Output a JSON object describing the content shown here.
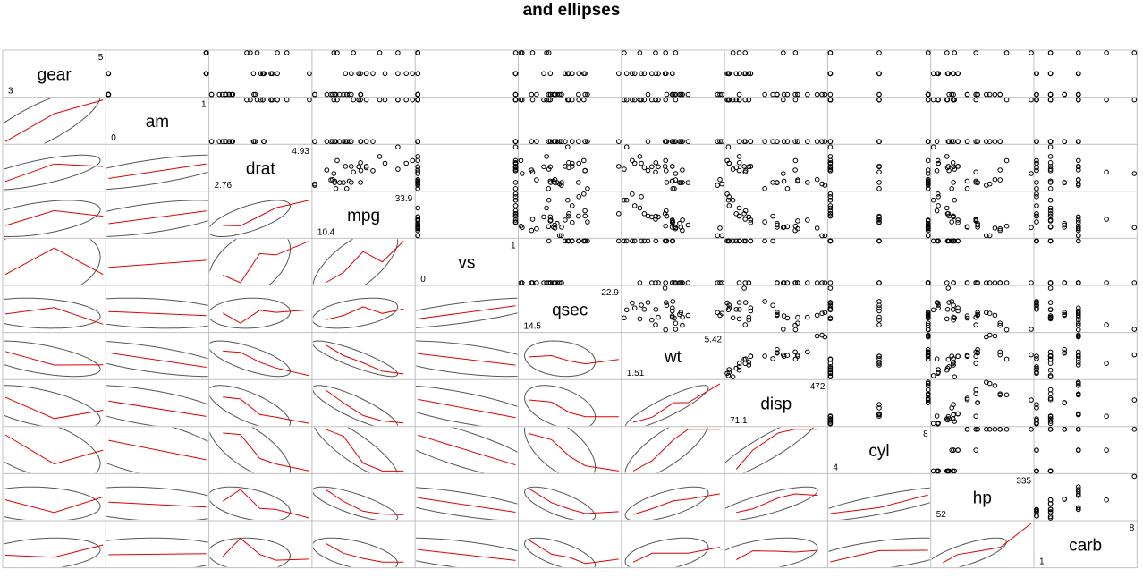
{
  "chart_data": {
    "type": "scatter",
    "subtype": "correlation-matrix-with-ellipses",
    "title": "and ellipses",
    "variables": [
      "gear",
      "am",
      "drat",
      "mpg",
      "vs",
      "qsec",
      "wt",
      "disp",
      "cyl",
      "hp",
      "carb"
    ],
    "ranges": {
      "gear": [
        3,
        5
      ],
      "am": [
        0,
        1
      ],
      "drat": [
        2.76,
        4.93
      ],
      "mpg": [
        10.4,
        33.9
      ],
      "vs": [
        0,
        1
      ],
      "qsec": [
        14.5,
        22.9
      ],
      "wt": [
        1.51,
        5.42
      ],
      "disp": [
        71.1,
        472
      ],
      "cyl": [
        4,
        8
      ],
      "hp": [
        52,
        335
      ],
      "carb": [
        1,
        8
      ]
    },
    "range_labels": {
      "gear": [
        "3",
        "5"
      ],
      "am": [
        "0",
        "1"
      ],
      "drat": [
        "2.76",
        "4.93"
      ],
      "mpg": [
        "10.4",
        "33.9"
      ],
      "vs": [
        "0",
        "1"
      ],
      "qsec": [
        "14.5",
        "22.9"
      ],
      "wt": [
        "1.51",
        "5.42"
      ],
      "disp": [
        "71.1",
        "472"
      ],
      "cyl": [
        "4",
        "8"
      ],
      "hp": [
        "52",
        "335"
      ],
      "carb": [
        "1",
        "8"
      ]
    },
    "observations": {
      "mpg": [
        21.0,
        21.0,
        22.8,
        21.4,
        18.7,
        18.1,
        14.3,
        24.4,
        22.8,
        19.2,
        17.8,
        16.4,
        17.3,
        15.2,
        10.4,
        10.4,
        14.7,
        32.4,
        30.4,
        33.9,
        21.5,
        15.5,
        15.2,
        13.3,
        19.2,
        27.3,
        26.0,
        30.4,
        15.8,
        19.7,
        15.0,
        21.4
      ],
      "cyl": [
        6,
        6,
        4,
        6,
        8,
        6,
        8,
        4,
        4,
        6,
        6,
        8,
        8,
        8,
        8,
        8,
        8,
        4,
        4,
        4,
        4,
        8,
        8,
        8,
        8,
        4,
        4,
        4,
        8,
        6,
        8,
        4
      ],
      "disp": [
        160,
        160,
        108,
        258,
        360,
        225,
        360,
        146.7,
        140.8,
        167.6,
        167.6,
        275.8,
        275.8,
        275.8,
        472,
        460,
        440,
        78.7,
        75.7,
        71.1,
        120.1,
        318,
        304,
        350,
        400,
        79,
        120.3,
        95.1,
        351,
        145,
        301,
        121
      ],
      "hp": [
        110,
        110,
        93,
        110,
        175,
        105,
        245,
        62,
        95,
        123,
        123,
        180,
        180,
        180,
        205,
        215,
        230,
        66,
        52,
        65,
        97,
        150,
        150,
        245,
        175,
        66,
        91,
        113,
        264,
        175,
        335,
        109
      ],
      "drat": [
        3.9,
        3.9,
        3.85,
        3.08,
        3.15,
        2.76,
        3.21,
        3.69,
        3.92,
        3.92,
        3.92,
        3.07,
        3.07,
        3.07,
        2.93,
        3.0,
        3.23,
        4.08,
        4.93,
        4.22,
        3.7,
        2.76,
        3.15,
        3.73,
        3.08,
        4.08,
        4.43,
        3.77,
        4.22,
        3.62,
        3.54,
        4.11
      ],
      "wt": [
        2.62,
        2.875,
        2.32,
        3.215,
        3.44,
        3.46,
        3.57,
        3.19,
        3.15,
        3.44,
        3.44,
        4.07,
        3.73,
        3.78,
        5.25,
        5.424,
        5.345,
        2.2,
        1.615,
        1.835,
        2.465,
        3.52,
        3.435,
        3.84,
        3.845,
        1.935,
        2.14,
        1.513,
        3.17,
        2.77,
        3.57,
        2.78
      ],
      "qsec": [
        16.46,
        17.02,
        18.61,
        19.44,
        17.02,
        20.22,
        15.84,
        20.0,
        22.9,
        18.3,
        18.9,
        17.4,
        17.6,
        18.0,
        17.98,
        17.82,
        17.42,
        19.47,
        18.52,
        19.9,
        20.01,
        16.87,
        17.3,
        15.41,
        17.05,
        18.9,
        16.7,
        16.9,
        14.5,
        15.5,
        14.6,
        18.6
      ],
      "vs": [
        0,
        0,
        1,
        1,
        0,
        1,
        0,
        1,
        1,
        1,
        1,
        0,
        0,
        0,
        0,
        0,
        0,
        1,
        1,
        1,
        1,
        0,
        0,
        0,
        0,
        1,
        0,
        1,
        0,
        0,
        0,
        1
      ],
      "am": [
        1,
        1,
        1,
        0,
        0,
        0,
        0,
        0,
        0,
        0,
        0,
        0,
        0,
        0,
        0,
        0,
        0,
        1,
        1,
        1,
        0,
        0,
        0,
        0,
        0,
        1,
        1,
        1,
        1,
        1,
        1,
        1
      ],
      "gear": [
        4,
        4,
        4,
        3,
        3,
        3,
        3,
        4,
        4,
        4,
        4,
        3,
        3,
        3,
        3,
        3,
        3,
        4,
        4,
        4,
        3,
        3,
        3,
        3,
        3,
        4,
        5,
        5,
        5,
        5,
        5,
        4
      ],
      "carb": [
        4,
        4,
        1,
        1,
        2,
        1,
        4,
        2,
        2,
        4,
        4,
        3,
        3,
        3,
        4,
        4,
        4,
        1,
        2,
        1,
        1,
        2,
        2,
        4,
        2,
        1,
        2,
        2,
        4,
        6,
        8,
        2
      ]
    },
    "upper_panels": "scatter points",
    "lower_panels": "loess smoother with data ellipse",
    "smoother_color": "#e00000",
    "ellipse_color": "#555555",
    "point_color": "#000000",
    "grid_color": "#c0c0c0"
  }
}
